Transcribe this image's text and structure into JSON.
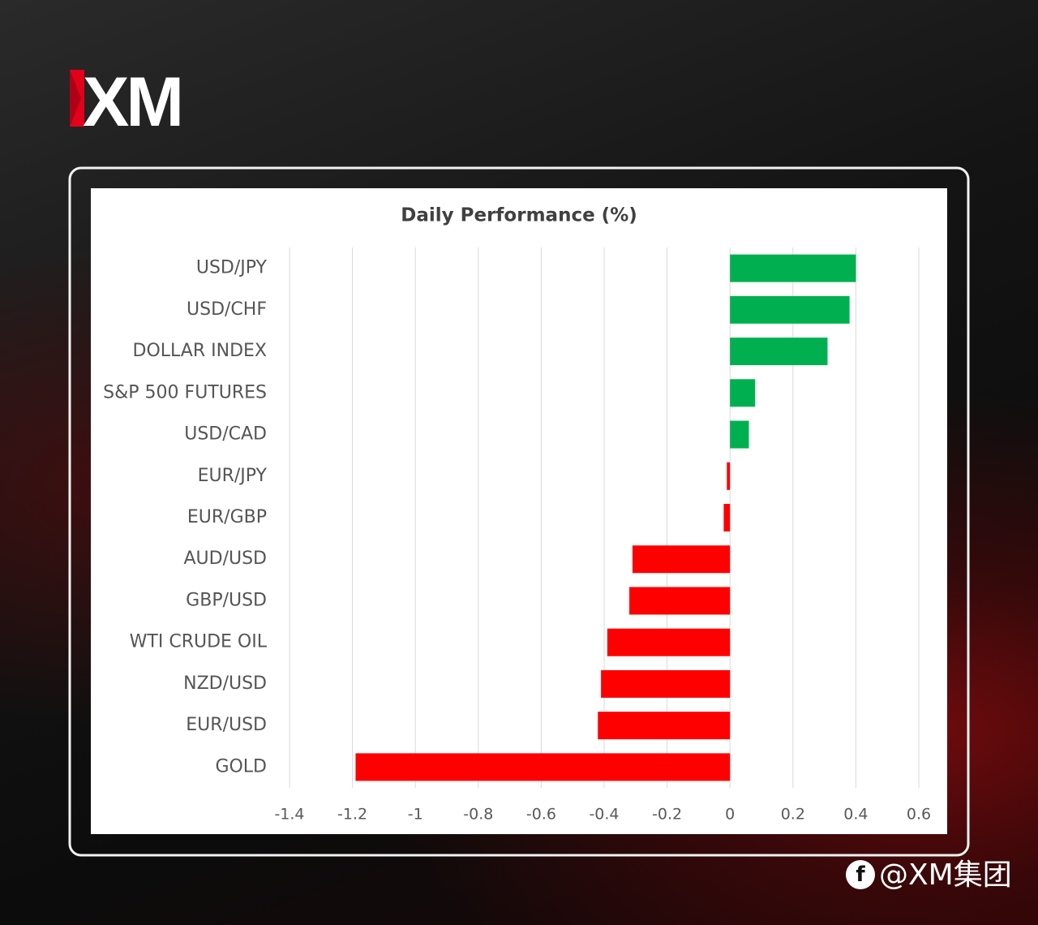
{
  "logo": "XM",
  "watermark": "@XM集团",
  "chart_data": {
    "type": "bar",
    "orientation": "horizontal",
    "title": "Daily Performance (%)",
    "categories": [
      "USD/JPY",
      "USD/CHF",
      "DOLLAR INDEX",
      "S&P 500 FUTURES",
      "USD/CAD",
      "EUR/JPY",
      "EUR/GBP",
      "AUD/USD",
      "GBP/USD",
      "WTI CRUDE OIL",
      "NZD/USD",
      "EUR/USD",
      "GOLD"
    ],
    "values": [
      0.4,
      0.38,
      0.31,
      0.08,
      0.06,
      -0.01,
      -0.02,
      -0.31,
      -0.32,
      -0.39,
      -0.41,
      -0.42,
      -1.19
    ],
    "positive_color": "#00b050",
    "negative_color": "#ff0000",
    "xlim": [
      -1.4,
      0.6
    ],
    "xticks": [
      -1.4,
      -1.2,
      -1,
      -0.8,
      -0.6,
      -0.4,
      -0.2,
      0,
      0.2,
      0.4,
      0.6
    ],
    "grid": true
  }
}
